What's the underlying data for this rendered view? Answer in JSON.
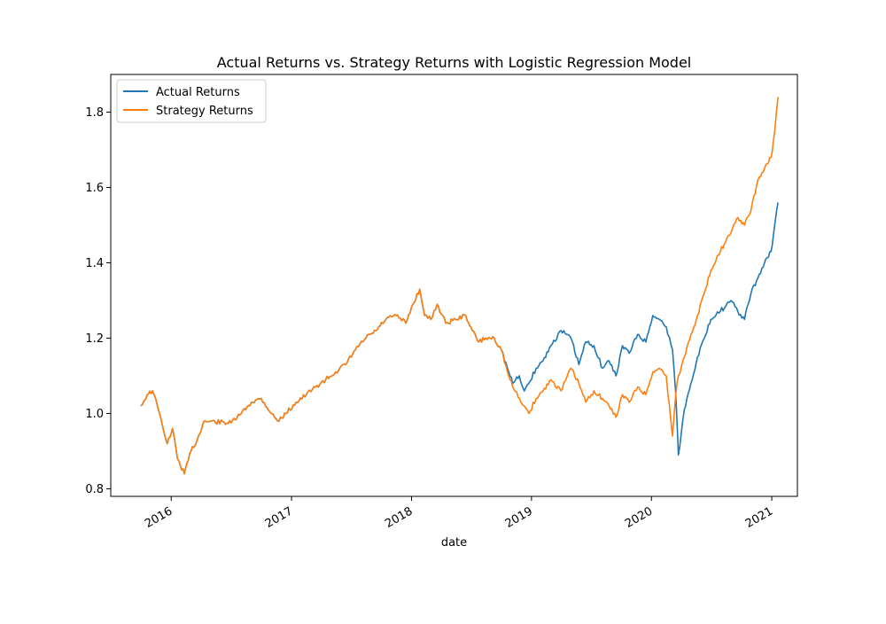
{
  "chart_data": {
    "type": "line",
    "title": "Actual Returns vs. Strategy Returns with Logistic Regression Model",
    "xlabel": "date",
    "ylabel": "",
    "xlim": [
      "2015-07-01",
      "2021-03-20"
    ],
    "ylim": [
      0.78,
      1.9
    ],
    "x_ticks": [
      "2016-01-01",
      "2017-01-01",
      "2018-01-01",
      "2019-01-01",
      "2020-01-01",
      "2021-01-01"
    ],
    "x_tick_labels": [
      "2016",
      "2017",
      "2018",
      "2019",
      "2020",
      "2021"
    ],
    "y_ticks": [
      0.8,
      1.0,
      1.2,
      1.4,
      1.6,
      1.8
    ],
    "y_tick_labels": [
      "0.8",
      "1.0",
      "1.2",
      "1.4",
      "1.6",
      "1.8"
    ],
    "grid": false,
    "legend": "upper left",
    "colors": {
      "Actual Returns": "#1f77b4",
      "Strategy Returns": "#ff7f0e"
    },
    "series": [
      {
        "name": "Actual Returns",
        "x": [
          "2015-10-01",
          "2015-10-20",
          "2015-11-05",
          "2015-11-20",
          "2015-12-05",
          "2015-12-20",
          "2016-01-05",
          "2016-01-20",
          "2016-02-10",
          "2016-03-01",
          "2016-03-20",
          "2016-04-10",
          "2016-07-01",
          "2016-08-01",
          "2016-09-01",
          "2016-10-01",
          "2016-11-01",
          "2016-11-20",
          "2016-12-15",
          "2017-01-15",
          "2017-02-15",
          "2017-03-15",
          "2017-04-15",
          "2017-05-15",
          "2017-06-15",
          "2017-07-15",
          "2017-08-15",
          "2017-09-15",
          "2017-10-15",
          "2017-11-15",
          "2017-12-15",
          "2018-01-05",
          "2018-01-26",
          "2018-02-10",
          "2018-03-01",
          "2018-03-20",
          "2018-04-15",
          "2018-05-15",
          "2018-06-15",
          "2018-07-05",
          "2018-07-25",
          "2018-08-15",
          "2018-09-10",
          "2018-10-01",
          "2018-10-20",
          "2018-11-05",
          "2018-11-25",
          "2018-12-10",
          "2018-12-24",
          "2019-01-15",
          "2019-02-05",
          "2019-03-01",
          "2019-04-01",
          "2019-05-01",
          "2019-05-25",
          "2019-06-15",
          "2019-07-10",
          "2019-08-05",
          "2019-08-25",
          "2019-09-15",
          "2019-10-05",
          "2019-10-25",
          "2019-11-20",
          "2019-12-15",
          "2020-01-05",
          "2020-01-25",
          "2020-02-15",
          "2020-03-05",
          "2020-03-15",
          "2020-03-23",
          "2020-04-10",
          "2020-04-30",
          "2020-05-20",
          "2020-06-10",
          "2020-06-30",
          "2020-07-20",
          "2020-08-10",
          "2020-08-30",
          "2020-09-20",
          "2020-10-10",
          "2020-10-30",
          "2020-11-20",
          "2020-12-10",
          "2020-12-30",
          "2021-01-10",
          "2021-01-20"
        ],
        "values": [
          1.02,
          1.05,
          1.06,
          1.02,
          0.97,
          0.92,
          0.96,
          0.88,
          0.84,
          0.9,
          0.93,
          0.98,
          0.975,
          1.0,
          1.03,
          1.04,
          1.0,
          0.98,
          1.0,
          1.03,
          1.05,
          1.07,
          1.09,
          1.11,
          1.13,
          1.17,
          1.2,
          1.22,
          1.25,
          1.26,
          1.24,
          1.29,
          1.33,
          1.26,
          1.25,
          1.29,
          1.24,
          1.25,
          1.26,
          1.22,
          1.19,
          1.2,
          1.2,
          1.17,
          1.12,
          1.08,
          1.1,
          1.06,
          1.08,
          1.12,
          1.14,
          1.18,
          1.22,
          1.2,
          1.13,
          1.19,
          1.18,
          1.12,
          1.14,
          1.1,
          1.18,
          1.16,
          1.21,
          1.19,
          1.26,
          1.25,
          1.23,
          1.17,
          1.05,
          0.89,
          1.01,
          1.08,
          1.15,
          1.2,
          1.25,
          1.27,
          1.28,
          1.3,
          1.27,
          1.25,
          1.32,
          1.36,
          1.4,
          1.43,
          1.5,
          1.56
        ]
      },
      {
        "name": "Strategy Returns",
        "x": [
          "2015-10-01",
          "2015-10-20",
          "2015-11-05",
          "2015-11-20",
          "2015-12-05",
          "2015-12-20",
          "2016-01-05",
          "2016-01-20",
          "2016-02-10",
          "2016-03-01",
          "2016-03-20",
          "2016-04-10",
          "2016-07-01",
          "2016-08-01",
          "2016-09-01",
          "2016-10-01",
          "2016-11-01",
          "2016-11-20",
          "2016-12-15",
          "2017-01-15",
          "2017-02-15",
          "2017-03-15",
          "2017-04-15",
          "2017-05-15",
          "2017-06-15",
          "2017-07-15",
          "2017-08-15",
          "2017-09-15",
          "2017-10-15",
          "2017-11-15",
          "2017-12-15",
          "2018-01-05",
          "2018-01-26",
          "2018-02-10",
          "2018-03-01",
          "2018-03-20",
          "2018-04-15",
          "2018-05-15",
          "2018-06-15",
          "2018-07-05",
          "2018-07-25",
          "2018-08-15",
          "2018-09-10",
          "2018-10-01",
          "2018-10-20",
          "2018-11-05",
          "2018-11-25",
          "2018-12-10",
          "2018-12-24",
          "2019-01-15",
          "2019-02-05",
          "2019-03-01",
          "2019-04-01",
          "2019-05-01",
          "2019-05-25",
          "2019-06-15",
          "2019-07-10",
          "2019-08-05",
          "2019-08-25",
          "2019-09-15",
          "2019-10-05",
          "2019-10-25",
          "2019-11-20",
          "2019-12-15",
          "2020-01-05",
          "2020-01-25",
          "2020-02-15",
          "2020-03-05",
          "2020-03-15",
          "2020-03-23",
          "2020-04-10",
          "2020-04-30",
          "2020-05-20",
          "2020-06-10",
          "2020-06-30",
          "2020-07-20",
          "2020-08-10",
          "2020-08-30",
          "2020-09-20",
          "2020-10-10",
          "2020-10-30",
          "2020-11-20",
          "2020-12-10",
          "2020-12-30",
          "2021-01-10",
          "2021-01-20"
        ],
        "values": [
          1.02,
          1.05,
          1.06,
          1.02,
          0.97,
          0.92,
          0.96,
          0.88,
          0.84,
          0.9,
          0.93,
          0.98,
          0.975,
          1.0,
          1.03,
          1.04,
          1.0,
          0.98,
          1.0,
          1.03,
          1.05,
          1.07,
          1.09,
          1.11,
          1.13,
          1.17,
          1.2,
          1.22,
          1.25,
          1.26,
          1.24,
          1.29,
          1.33,
          1.26,
          1.25,
          1.29,
          1.24,
          1.25,
          1.26,
          1.22,
          1.19,
          1.2,
          1.2,
          1.17,
          1.11,
          1.07,
          1.04,
          1.02,
          1.0,
          1.04,
          1.06,
          1.09,
          1.06,
          1.12,
          1.08,
          1.03,
          1.06,
          1.04,
          1.02,
          0.99,
          1.05,
          1.03,
          1.07,
          1.05,
          1.11,
          1.12,
          1.1,
          0.94,
          1.05,
          1.1,
          1.15,
          1.21,
          1.26,
          1.32,
          1.38,
          1.42,
          1.45,
          1.48,
          1.52,
          1.5,
          1.54,
          1.62,
          1.65,
          1.68,
          1.75,
          1.84
        ]
      }
    ]
  }
}
